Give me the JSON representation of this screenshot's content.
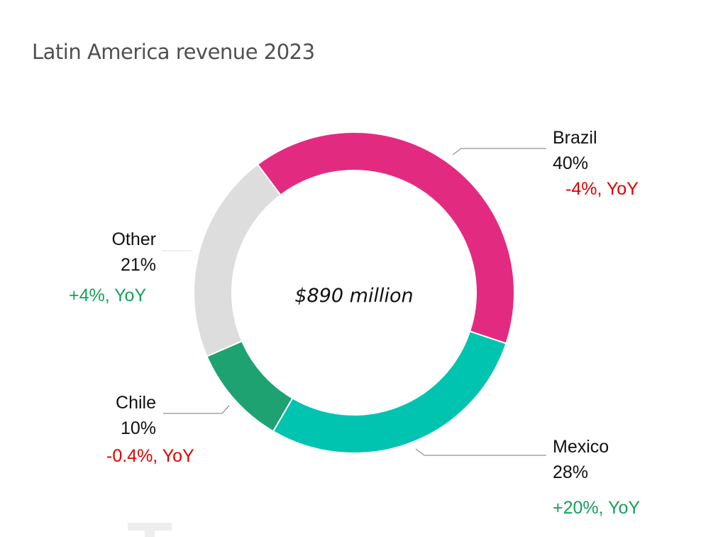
{
  "chart_data": {
    "type": "pie",
    "variant": "donut",
    "title": "Latin America revenue 2023",
    "center_label": "$890 million",
    "total": "$890 million",
    "start_angle_deg": 323,
    "direction": "clockwise",
    "slices": [
      {
        "name": "Brazil",
        "share_pct": 40,
        "share_label": "40%",
        "yoy_label": "-4%, YoY",
        "yoy_pct": -4,
        "color": "#E22B80",
        "yoy_color": "#E00000"
      },
      {
        "name": "Mexico",
        "share_pct": 28,
        "share_label": "28%",
        "yoy_label": "+20%, YoY",
        "yoy_pct": 20,
        "color": "#00C4B0",
        "yoy_color": "#16A05A"
      },
      {
        "name": "Chile",
        "share_pct": 10,
        "share_label": "10%",
        "yoy_label": "-0.4%, YoY",
        "yoy_pct": -0.4,
        "color": "#1FA271",
        "yoy_color": "#E00000"
      },
      {
        "name": "Other",
        "share_pct": 21,
        "share_label": "21%",
        "yoy_label": "+4%, YoY",
        "yoy_pct": 4,
        "color": "#DDDDDD",
        "yoy_color": "#16A05A"
      }
    ],
    "legend": "none (direct labels with leader lines)"
  }
}
